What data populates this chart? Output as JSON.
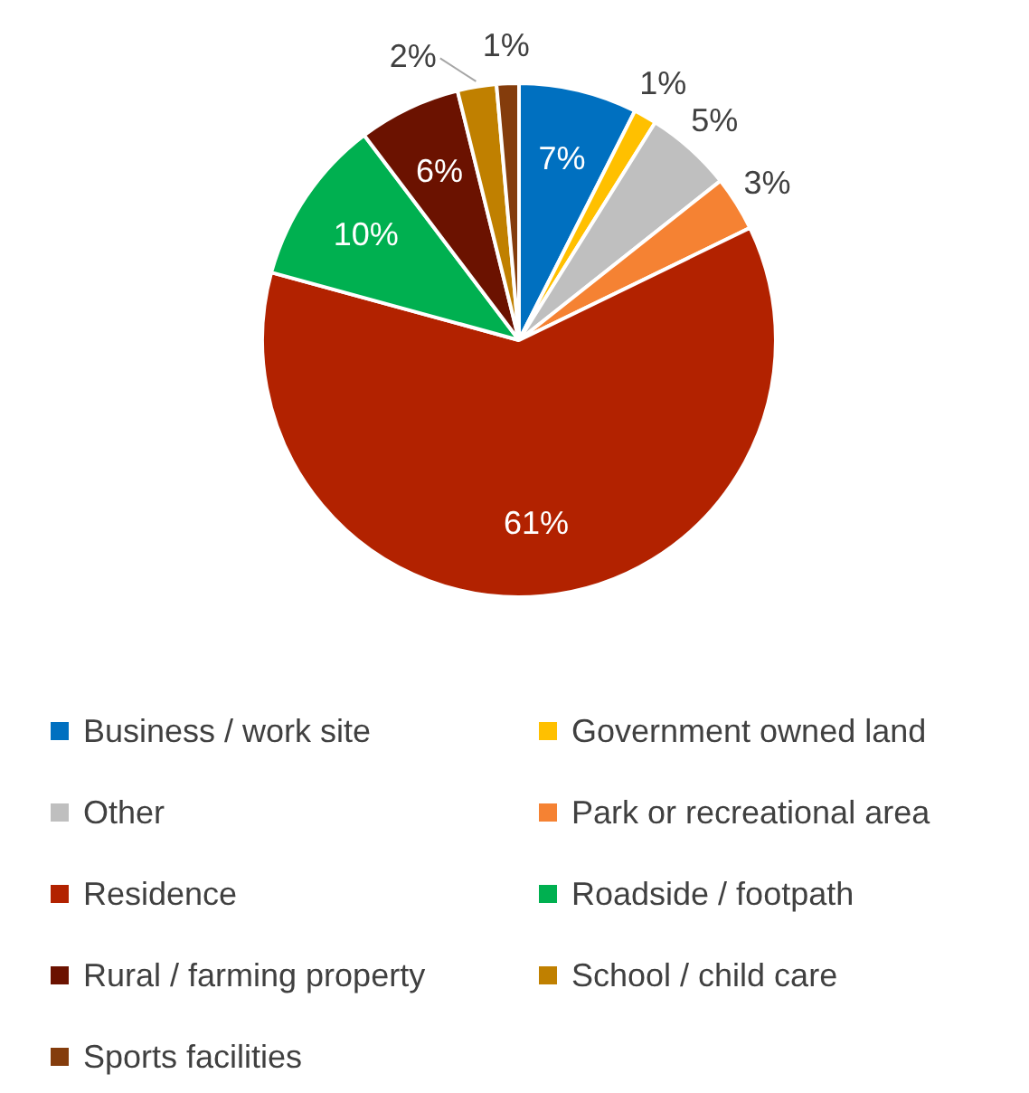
{
  "chart_data": {
    "type": "pie",
    "categories": [
      "Business / work site",
      "Government owned land",
      "Other",
      "Park or recreational area",
      "Residence",
      "Roadside / footpath",
      "Rural / farming property",
      "School / child care",
      "Sports facilities"
    ],
    "values": [
      7.45,
      1.45,
      5.45,
      3.45,
      61.45,
      10.45,
      6.45,
      2.45,
      1.4
    ],
    "value_labels": [
      "7%",
      "1%",
      "5%",
      "3%",
      "61%",
      "10%",
      "6%",
      "2%",
      "1%"
    ],
    "colors": [
      "#0070c0",
      "#ffc000",
      "#bfbfbf",
      "#f58233",
      "#b22200",
      "#00b050",
      "#6b1200",
      "#c08000",
      "#843c0c"
    ],
    "legend": "bottom"
  }
}
